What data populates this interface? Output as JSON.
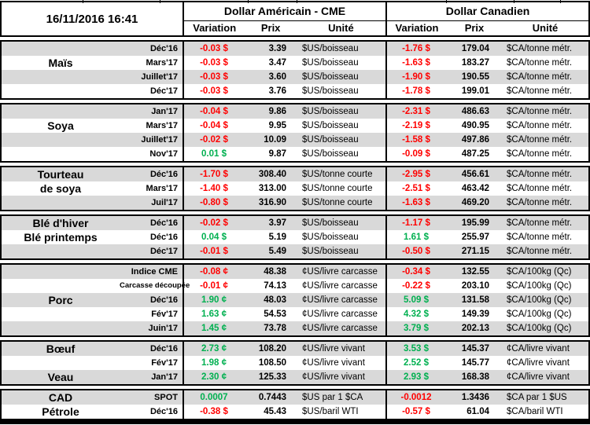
{
  "header": {
    "date": "16/11/2016 16:41",
    "us_title": "Dollar Américain - CME",
    "ca_title": "Dollar Canadien",
    "cols": {
      "variation": "Variation",
      "prix": "Prix",
      "unite": "Unité"
    }
  },
  "colors": {
    "negative": "#ff0000",
    "positive": "#00b050",
    "stripe": "#d9d9d9",
    "border": "#000000",
    "background": "#ffffff"
  },
  "sections": [
    {
      "name": "mais",
      "rows": [
        {
          "label": "",
          "month": "Déc'16",
          "us_var": "-0.03 $",
          "us_color": "red",
          "us_prix": "3.39",
          "us_unit": "$US/boisseau",
          "ca_var": "-1.76 $",
          "ca_color": "red",
          "ca_prix": "179.04",
          "ca_unit": "$CA/tonne métr."
        },
        {
          "label": "Maïs",
          "month": "Mars'17",
          "us_var": "-0.03 $",
          "us_color": "red",
          "us_prix": "3.47",
          "us_unit": "$US/boisseau",
          "ca_var": "-1.63 $",
          "ca_color": "red",
          "ca_prix": "183.27",
          "ca_unit": "$CA/tonne métr."
        },
        {
          "label": "",
          "month": "Juillet'17",
          "us_var": "-0.03 $",
          "us_color": "red",
          "us_prix": "3.60",
          "us_unit": "$US/boisseau",
          "ca_var": "-1.90 $",
          "ca_color": "red",
          "ca_prix": "190.55",
          "ca_unit": "$CA/tonne métr."
        },
        {
          "label": "",
          "month": "Déc'17",
          "us_var": "-0.03 $",
          "us_color": "red",
          "us_prix": "3.76",
          "us_unit": "$US/boisseau",
          "ca_var": "-1.78 $",
          "ca_color": "red",
          "ca_prix": "199.01",
          "ca_unit": "$CA/tonne métr."
        }
      ]
    },
    {
      "name": "soya",
      "rows": [
        {
          "label": "",
          "month": "Jan'17",
          "us_var": "-0.04 $",
          "us_color": "red",
          "us_prix": "9.86",
          "us_unit": "$US/boisseau",
          "ca_var": "-2.31 $",
          "ca_color": "red",
          "ca_prix": "486.63",
          "ca_unit": "$CA/tonne métr."
        },
        {
          "label": "Soya",
          "month": "Mars'17",
          "us_var": "-0.04 $",
          "us_color": "red",
          "us_prix": "9.95",
          "us_unit": "$US/boisseau",
          "ca_var": "-2.19 $",
          "ca_color": "red",
          "ca_prix": "490.95",
          "ca_unit": "$CA/tonne métr."
        },
        {
          "label": "",
          "month": "Juillet'17",
          "us_var": "-0.02 $",
          "us_color": "red",
          "us_prix": "10.09",
          "us_unit": "$US/boisseau",
          "ca_var": "-1.58 $",
          "ca_color": "red",
          "ca_prix": "497.86",
          "ca_unit": "$CA/tonne métr."
        },
        {
          "label": "",
          "month": "Nov'17",
          "us_var": "0.01 $",
          "us_color": "green",
          "us_prix": "9.87",
          "us_unit": "$US/boisseau",
          "ca_var": "-0.09 $",
          "ca_color": "red",
          "ca_prix": "487.25",
          "ca_unit": "$CA/tonne métr."
        }
      ]
    },
    {
      "name": "tourteau-de-soya",
      "rows": [
        {
          "label": "Tourteau",
          "month": "Déc'16",
          "us_var": "-1.70 $",
          "us_color": "red",
          "us_prix": "308.40",
          "us_unit": "$US/tonne courte",
          "ca_var": "-2.95 $",
          "ca_color": "red",
          "ca_prix": "456.61",
          "ca_unit": "$CA/tonne métr."
        },
        {
          "label": "de soya",
          "month": "Mars'17",
          "us_var": "-1.40 $",
          "us_color": "red",
          "us_prix": "313.00",
          "us_unit": "$US/tonne courte",
          "ca_var": "-2.51 $",
          "ca_color": "red",
          "ca_prix": "463.42",
          "ca_unit": "$CA/tonne métr."
        },
        {
          "label": "",
          "month": "Juil'17",
          "us_var": "-0.80 $",
          "us_color": "red",
          "us_prix": "316.90",
          "us_unit": "$US/tonne courte",
          "ca_var": "-1.63 $",
          "ca_color": "red",
          "ca_prix": "469.20",
          "ca_unit": "$CA/tonne métr."
        }
      ]
    },
    {
      "name": "ble",
      "rows": [
        {
          "label": "Blé d'hiver",
          "month": "Déc'16",
          "us_var": "-0.02 $",
          "us_color": "red",
          "us_prix": "3.97",
          "us_unit": "$US/boisseau",
          "ca_var": "-1.17 $",
          "ca_color": "red",
          "ca_prix": "195.99",
          "ca_unit": "$CA/tonne métr."
        },
        {
          "label": "Blé printemps",
          "month": "Déc'16",
          "us_var": "0.04 $",
          "us_color": "green",
          "us_prix": "5.19",
          "us_unit": "$US/boisseau",
          "ca_var": "1.61 $",
          "ca_color": "green",
          "ca_prix": "255.97",
          "ca_unit": "$CA/tonne métr."
        },
        {
          "label": "",
          "month": "Déc'17",
          "us_var": "-0.01 $",
          "us_color": "red",
          "us_prix": "5.49",
          "us_unit": "$US/boisseau",
          "ca_var": "-0.50 $",
          "ca_color": "red",
          "ca_prix": "271.15",
          "ca_unit": "$CA/tonne métr."
        }
      ]
    },
    {
      "name": "porc",
      "rows": [
        {
          "label": "",
          "month": "Indice CME",
          "us_var": "-0.08 ¢",
          "us_color": "red",
          "us_prix": "48.38",
          "us_unit": "¢US/livre carcasse",
          "ca_var": "-0.34 $",
          "ca_color": "red",
          "ca_prix": "132.55",
          "ca_unit": "$CA/100kg (Qc)"
        },
        {
          "label": "",
          "month": "Carcasse découpée",
          "us_var": "-0.01 ¢",
          "us_color": "red",
          "us_prix": "74.13",
          "us_unit": "¢US/livre carcasse",
          "ca_var": "-0.22 $",
          "ca_color": "red",
          "ca_prix": "203.10",
          "ca_unit": "$CA/100kg (Qc)"
        },
        {
          "label": "Porc",
          "month": "Déc'16",
          "us_var": "1.90 ¢",
          "us_color": "green",
          "us_prix": "48.03",
          "us_unit": "¢US/livre carcasse",
          "ca_var": "5.09 $",
          "ca_color": "green",
          "ca_prix": "131.58",
          "ca_unit": "$CA/100kg (Qc)"
        },
        {
          "label": "",
          "month": "Fév'17",
          "us_var": "1.63 ¢",
          "us_color": "green",
          "us_prix": "54.53",
          "us_unit": "¢US/livre carcasse",
          "ca_var": "4.32 $",
          "ca_color": "green",
          "ca_prix": "149.39",
          "ca_unit": "$CA/100kg (Qc)"
        },
        {
          "label": "",
          "month": "Juin'17",
          "us_var": "1.45 ¢",
          "us_color": "green",
          "us_prix": "73.78",
          "us_unit": "¢US/livre carcasse",
          "ca_var": "3.79 $",
          "ca_color": "green",
          "ca_prix": "202.13",
          "ca_unit": "$CA/100kg (Qc)"
        }
      ]
    },
    {
      "name": "boeuf-veau",
      "rows": [
        {
          "label": "Bœuf",
          "month": "Déc'16",
          "us_var": "2.73 ¢",
          "us_color": "green",
          "us_prix": "108.20",
          "us_unit": "¢US/livre vivant",
          "ca_var": "3.53 $",
          "ca_color": "green",
          "ca_prix": "145.37",
          "ca_unit": "¢CA/livre vivant"
        },
        {
          "label": "",
          "month": "Fév'17",
          "us_var": "1.98 ¢",
          "us_color": "green",
          "us_prix": "108.50",
          "us_unit": "¢US/livre vivant",
          "ca_var": "2.52 $",
          "ca_color": "green",
          "ca_prix": "145.77",
          "ca_unit": "¢CA/livre vivant"
        },
        {
          "label": "Veau",
          "month": "Jan'17",
          "us_var": "2.30 ¢",
          "us_color": "green",
          "us_prix": "125.33",
          "us_unit": "¢US/livre vivant",
          "ca_var": "2.93 $",
          "ca_color": "green",
          "ca_prix": "168.38",
          "ca_unit": "¢CA/livre vivant"
        }
      ]
    },
    {
      "name": "cad-petrole",
      "rows": [
        {
          "label": "CAD",
          "month": "SPOT",
          "us_var": "0.0007",
          "us_color": "green",
          "us_prix": "0.7443",
          "us_unit": "$US par 1 $CA",
          "ca_var": "-0.0012",
          "ca_color": "red",
          "ca_prix": "1.3436",
          "ca_unit": "$CA par 1 $US"
        },
        {
          "label": "Pétrole",
          "month": "Déc'16",
          "us_var": "-0.38 $",
          "us_color": "red",
          "us_prix": "45.43",
          "us_unit": "$US/baril WTI",
          "ca_var": "-0.57 $",
          "ca_color": "red",
          "ca_prix": "61.04",
          "ca_unit": "$CA/baril WTI"
        }
      ]
    }
  ]
}
